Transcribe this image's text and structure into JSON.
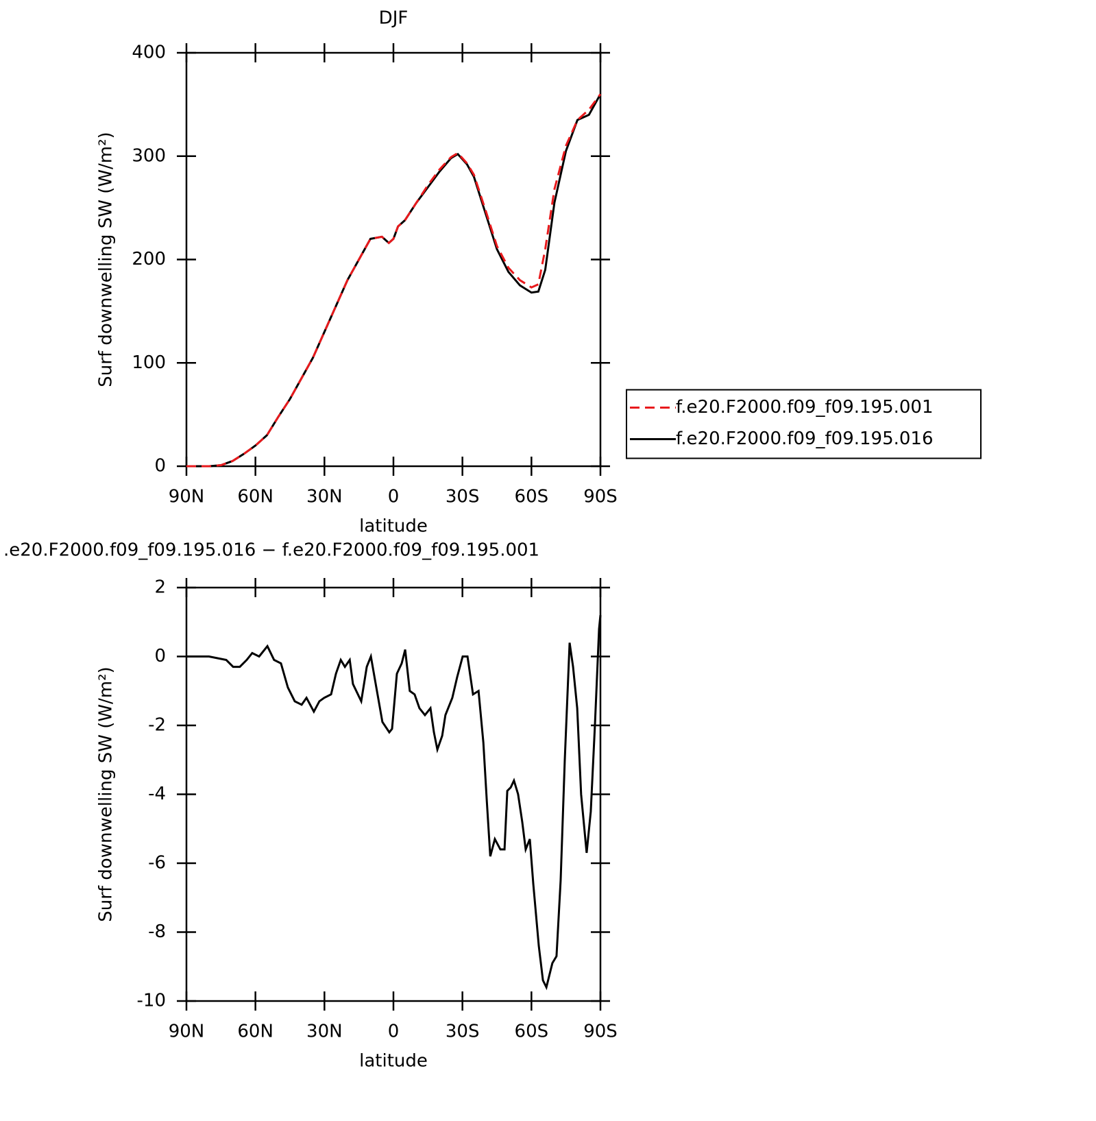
{
  "chart_data": [
    {
      "type": "line",
      "title": "DJF",
      "xlabel": "latitude",
      "ylabel": "Surf downwelling SW (W/m²)",
      "x": [
        90,
        80,
        75,
        70,
        65,
        60,
        55,
        50,
        45,
        40,
        35,
        30,
        25,
        20,
        15,
        10,
        5,
        2,
        0,
        -2,
        -5,
        -10,
        -15,
        -20,
        -25,
        -28,
        -32,
        -35,
        -40,
        -45,
        -50,
        -55,
        -60,
        -63,
        -66,
        -70,
        -75,
        -80,
        -85,
        -90
      ],
      "series": [
        {
          "name": "f.e20.F2000.f09_f09.195.001",
          "color": "#e8191c",
          "dash": true,
          "values": [
            0,
            0,
            1,
            5,
            12,
            20,
            30,
            48,
            65,
            85,
            105,
            130,
            155,
            180,
            200,
            220,
            222,
            216,
            220,
            232,
            238,
            255,
            272,
            287,
            299,
            303,
            293,
            282,
            248,
            213,
            192,
            180,
            173,
            176,
            210,
            268,
            310,
            335,
            345,
            360
          ]
        },
        {
          "name": "f.e20.F2000.f09_f09.195.016",
          "color": "#000000",
          "dash": false,
          "values": [
            0,
            0,
            1,
            5,
            12,
            20,
            30,
            48,
            65,
            85,
            105,
            130,
            155,
            180,
            200,
            220,
            222,
            216,
            220,
            232,
            238,
            255,
            270,
            285,
            298,
            302,
            292,
            280,
            245,
            210,
            188,
            175,
            168,
            169,
            190,
            255,
            305,
            335,
            340,
            360
          ]
        }
      ],
      "xlim": [
        90,
        -90
      ],
      "xticks": [
        {
          "value": 90,
          "label": "90N"
        },
        {
          "value": 60,
          "label": "60N"
        },
        {
          "value": 30,
          "label": "30N"
        },
        0,
        {
          "value": -30,
          "label": "30S"
        },
        {
          "value": -60,
          "label": "60S"
        },
        {
          "value": -90,
          "label": "90S"
        }
      ],
      "ylim": [
        0,
        400
      ],
      "yticks": [
        0,
        100,
        200,
        300,
        400
      ],
      "legend": "right"
    },
    {
      "type": "line",
      "title": ".e20.F2000.f09_f09.195.016 − f.e20.F2000.f09_f09.195.001",
      "xlabel": "latitude",
      "ylabel": "Surf downwelling SW (W/m²)",
      "x": [
        90,
        80.2,
        72.7,
        69.7,
        66.8,
        63.8,
        61.4,
        58.4,
        54.8,
        51.9,
        48.9,
        45.9,
        42.9,
        39.9,
        37.8,
        34.6,
        32.2,
        30.1,
        27.1,
        25,
        22.9,
        21.1,
        19,
        17.6,
        14,
        11.6,
        9.8,
        7.7,
        4.8,
        1.8,
        0.6,
        -1.5,
        -3.6,
        -5.1,
        -7.1,
        -9.2,
        -11.3,
        -13.7,
        -16.1,
        -17.6,
        -19.1,
        -21.2,
        -22.6,
        -25.6,
        -27.7,
        -30.1,
        -32.2,
        -34.6,
        -37,
        -39.1,
        -40.6,
        -42.1,
        -44.1,
        -46.5,
        -48.3,
        -49.5,
        -51,
        -52.4,
        -54.2,
        -56,
        -57.5,
        -59.3,
        -60.8,
        -63.2,
        -65,
        -66.5,
        -69.1,
        -70.9,
        -72.7,
        -74.5,
        -76.6,
        -78.1,
        -79.9,
        -81.6,
        -84,
        -85.8,
        -87.6,
        -89.4,
        -90
      ],
      "values": [
        0,
        0,
        -0.1,
        -0.3,
        -0.3,
        -0.1,
        0.1,
        0,
        0.3,
        -0.1,
        -0.2,
        -0.9,
        -1.3,
        -1.4,
        -1.2,
        -1.6,
        -1.3,
        -1.2,
        -1.1,
        -0.5,
        -0.1,
        -0.3,
        -0.1,
        -0.8,
        -1.3,
        -0.3,
        0,
        -0.8,
        -1.9,
        -2.2,
        -2.1,
        -0.5,
        -0.2,
        0.2,
        -1,
        -1.1,
        -1.5,
        -1.7,
        -1.5,
        -2.2,
        -2.7,
        -2.3,
        -1.7,
        -1.2,
        -0.6,
        0,
        0,
        -1.1,
        -1,
        -2.5,
        -4.2,
        -5.8,
        -5.3,
        -5.6,
        -5.6,
        -3.9,
        -3.8,
        -3.6,
        -4,
        -4.8,
        -5.6,
        -5.3,
        -6.6,
        -8.4,
        -9.4,
        -9.6,
        -8.9,
        -8.7,
        -6.5,
        -3,
        0.4,
        -0.3,
        -1.5,
        -4,
        -5.7,
        -4.5,
        -2,
        0.8,
        1.2
      ],
      "color": "#000000",
      "xlim": [
        90,
        -90
      ],
      "xticks": [
        {
          "value": 90,
          "label": "90N"
        },
        {
          "value": 60,
          "label": "60N"
        },
        {
          "value": 30,
          "label": "30N"
        },
        0,
        {
          "value": -30,
          "label": "30S"
        },
        {
          "value": -60,
          "label": "60S"
        },
        {
          "value": -90,
          "label": "90S"
        }
      ],
      "ylim": [
        -10,
        2
      ],
      "yticks": [
        -10,
        -8,
        -6,
        -4,
        -2,
        0,
        2
      ]
    }
  ]
}
